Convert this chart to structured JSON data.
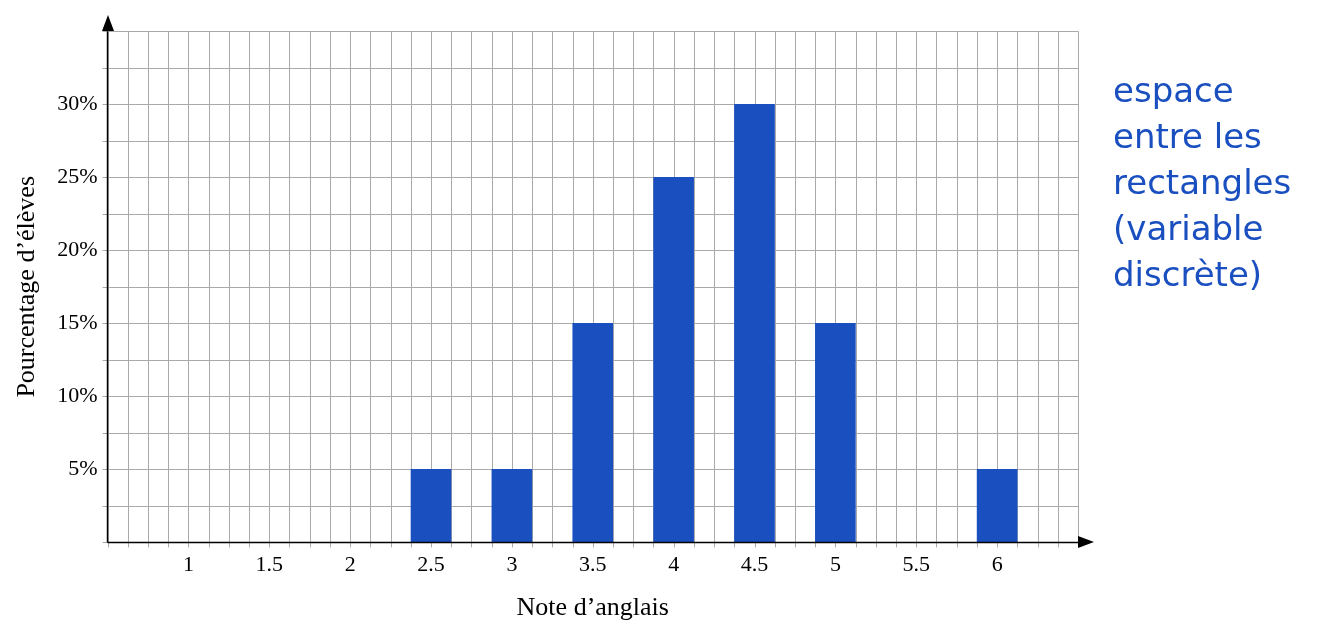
{
  "chart_data": {
    "type": "bar",
    "xlabel": "Note d’anglais",
    "ylabel": "Pourcentage d’élèves",
    "x": [
      2.5,
      3,
      3.5,
      4,
      4.5,
      5,
      6
    ],
    "values": [
      5,
      5,
      15,
      25,
      30,
      15,
      5
    ],
    "color": "#1a4fc0",
    "xlim": [
      0.5,
      6.5
    ],
    "ylim": [
      0,
      35
    ],
    "xticks": [
      {
        "value": 0.5,
        "label": null
      },
      {
        "value": 0.625,
        "label": null
      },
      {
        "value": 0.75,
        "label": null
      },
      {
        "value": 0.875,
        "label": null
      },
      1,
      {
        "value": 1.125,
        "label": null
      },
      {
        "value": 1.25,
        "label": null
      },
      {
        "value": 1.375,
        "label": null
      },
      1.5,
      {
        "value": 1.625,
        "label": null
      },
      {
        "value": 1.75,
        "label": null
      },
      {
        "value": 1.875,
        "label": null
      },
      2,
      {
        "value": 2.125,
        "label": null
      },
      {
        "value": 2.25,
        "label": null
      },
      {
        "value": 2.375,
        "label": null
      },
      2.5,
      {
        "value": 2.625,
        "label": null
      },
      {
        "value": 2.75,
        "label": null
      },
      {
        "value": 2.875,
        "label": null
      },
      3,
      {
        "value": 3.125,
        "label": null
      },
      {
        "value": 3.25,
        "label": null
      },
      {
        "value": 3.375,
        "label": null
      },
      3.5,
      {
        "value": 3.625,
        "label": null
      },
      {
        "value": 3.75,
        "label": null
      },
      {
        "value": 3.875,
        "label": null
      },
      4,
      {
        "value": 4.125,
        "label": null
      },
      {
        "value": 4.25,
        "label": null
      },
      {
        "value": 4.375,
        "label": null
      },
      4.5,
      {
        "value": 4.625,
        "label": null
      },
      {
        "value": 4.75,
        "label": null
      },
      {
        "value": 4.875,
        "label": null
      },
      5,
      {
        "value": 5.125,
        "label": null
      },
      {
        "value": 5.25,
        "label": null
      },
      {
        "value": 5.375,
        "label": null
      },
      5.5,
      {
        "value": 5.625,
        "label": null
      },
      {
        "value": 5.75,
        "label": null
      },
      {
        "value": 5.875,
        "label": null
      },
      6,
      {
        "value": 6.125,
        "label": null
      },
      {
        "value": 6.25,
        "label": null
      },
      {
        "value": 6.375,
        "label": null
      },
      {
        "value": 6.5,
        "label": null
      }
    ],
    "yticks": [
      {
        "value": 0,
        "label": null
      },
      {
        "value": 2.5,
        "label": null
      },
      {
        "value": 5,
        "label": "5%"
      },
      {
        "value": 7.5,
        "label": null
      },
      {
        "value": 10,
        "label": "10%"
      },
      {
        "value": 12.5,
        "label": null
      },
      {
        "value": 15,
        "label": "15%"
      },
      {
        "value": 17.5,
        "label": null
      },
      {
        "value": 20,
        "label": "20%"
      },
      {
        "value": 22.5,
        "label": null
      },
      {
        "value": 25,
        "label": "25%"
      },
      {
        "value": 27.5,
        "label": null
      },
      {
        "value": 30,
        "label": "30%"
      },
      {
        "value": 32.5,
        "label": null
      },
      {
        "value": 35,
        "label": null
      }
    ],
    "grid": true,
    "legend": false,
    "annotations": [
      "espace entre les rectangles (variable discrète)"
    ]
  }
}
